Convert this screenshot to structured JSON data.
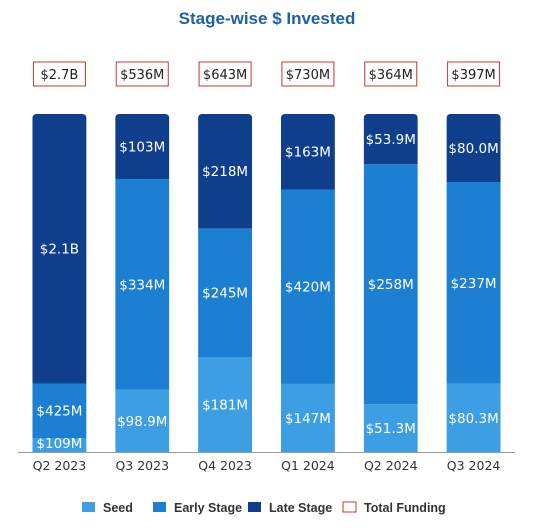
{
  "chart_data": {
    "type": "bar",
    "stacked": true,
    "title": "Stage-wise $ Invested",
    "categories": [
      "Q2 2023",
      "Q3 2023",
      "Q4 2023",
      "Q1 2024",
      "Q2 2024",
      "Q3 2024"
    ],
    "series": [
      {
        "name": "Seed",
        "color": "#3d9ee4",
        "values": [
          109,
          98.9,
          181,
          147,
          51.3,
          80.3
        ],
        "labels": [
          "$109M",
          "$98.9M",
          "$181M",
          "$147M",
          "$51.3M",
          "$80.3M"
        ]
      },
      {
        "name": "Early Stage",
        "color": "#1c7fd1",
        "values": [
          425,
          334,
          245,
          420,
          258,
          237
        ],
        "labels": [
          "$425M",
          "$334M",
          "$245M",
          "$420M",
          "$258M",
          "$237M"
        ]
      },
      {
        "name": "Late Stage",
        "color": "#0f3f8c",
        "values": [
          2100,
          103,
          218,
          163,
          53.9,
          80.0
        ],
        "labels": [
          "$2.1B",
          "$103M",
          "$218M",
          "$163M",
          "$53.9M",
          "$80.0M"
        ]
      }
    ],
    "totals": {
      "name": "Total Funding",
      "color": "#c0392b",
      "labels": [
        "$2.7B",
        "$536M",
        "$643M",
        "$730M",
        "$364M",
        "$397M"
      ]
    },
    "legend_position": "bottom",
    "grid": false,
    "scaling": "each bar normalized to its total (100% height)"
  },
  "title_color": "#1f5fa8"
}
